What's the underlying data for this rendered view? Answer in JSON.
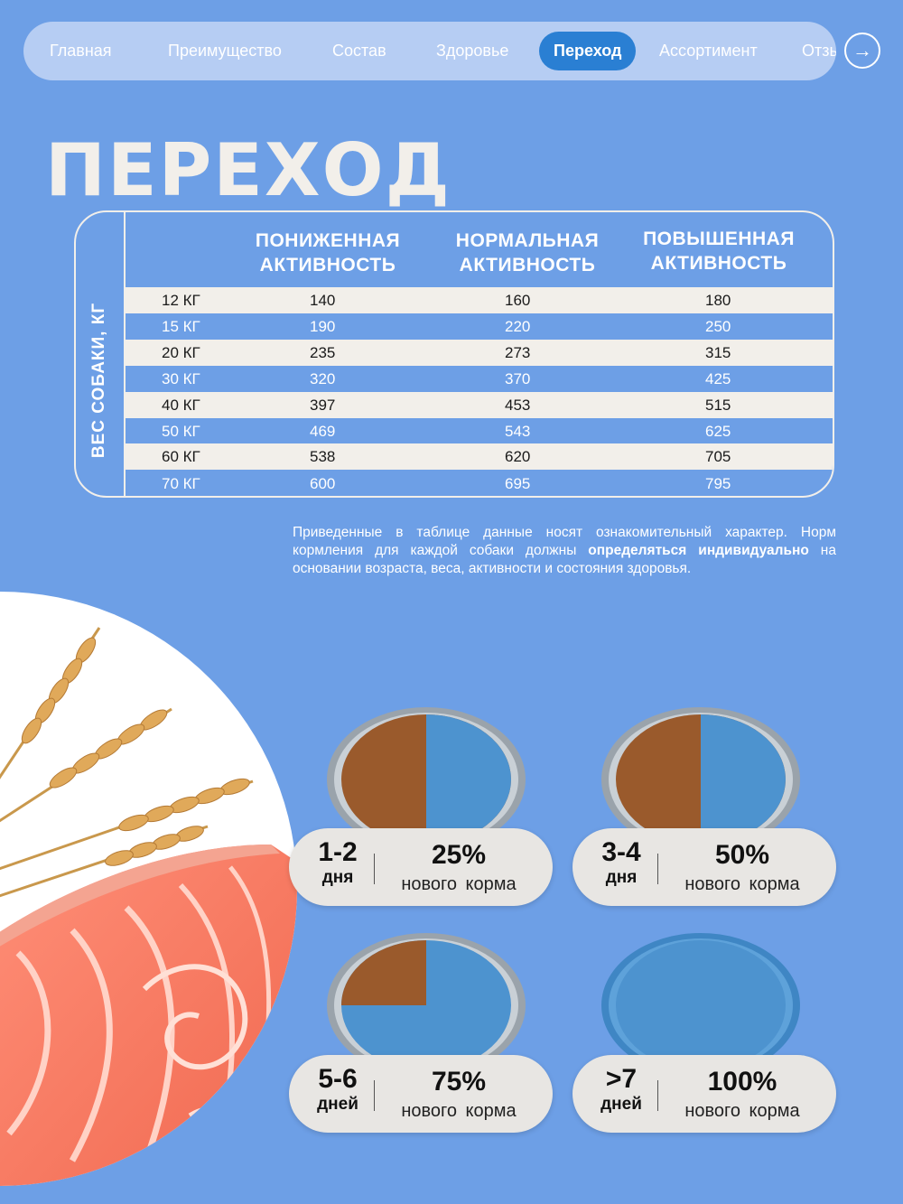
{
  "nav": {
    "items": [
      "Главная",
      "Преимущество",
      "Состав",
      "Здоровье",
      "Переход",
      "Ассортимент",
      "Отзывы"
    ],
    "active": "Переход",
    "next_arrow": "→"
  },
  "title": "ПЕРЕХОД",
  "table": {
    "row_header": "ВЕС СОБАКИ, КГ",
    "columns": [
      [
        "ПОНИЖЕННАЯ",
        "АКТИВНОСТЬ"
      ],
      [
        "НОРМАЛЬНАЯ",
        "АКТИВНОСТЬ"
      ],
      [
        "ПОВЫШЕННАЯ",
        "АКТИВНОСТЬ"
      ]
    ],
    "rows": [
      {
        "weight": "12 КГ",
        "low": "140",
        "normal": "160",
        "high": "180"
      },
      {
        "weight": "15 КГ",
        "low": "190",
        "normal": "220",
        "high": "250"
      },
      {
        "weight": "20 КГ",
        "low": "235",
        "normal": "273",
        "high": "315"
      },
      {
        "weight": "30 КГ",
        "low": "320",
        "normal": "370",
        "high": "425"
      },
      {
        "weight": "40 КГ",
        "low": "397",
        "normal": "453",
        "high": "515"
      },
      {
        "weight": "50 КГ",
        "low": "469",
        "normal": "543",
        "high": "625"
      },
      {
        "weight": "60 КГ",
        "low": "538",
        "normal": "620",
        "high": "705"
      },
      {
        "weight": "70 КГ",
        "low": "600",
        "normal": "695",
        "high": "795"
      }
    ]
  },
  "note": {
    "part1": "Приведенные в таблице данные носят ознакомительный характер. Норм кормления для каждой собаки должны ",
    "bold": "определяться индивидуально",
    "part2": " на основании возраста, веса, активности и состояния здоровья."
  },
  "transition": [
    {
      "days": "1-2",
      "unit": "дня",
      "percent": "25%",
      "label": "нового корма",
      "new_fraction": 0.25
    },
    {
      "days": "3-4",
      "unit": "дня",
      "percent": "50%",
      "label": "нового корма",
      "new_fraction": 0.5
    },
    {
      "days": "5-6",
      "unit": "дней",
      "percent": "75%",
      "label": "нового корма",
      "new_fraction": 0.75
    },
    {
      "days": ">7",
      "unit": "дней",
      "percent": "100%",
      "label": "нового корма",
      "new_fraction": 1.0
    }
  ],
  "colors": {
    "background": "#6d9fe6",
    "nav_pill": "#b6cdf3",
    "nav_active": "#2a7fd3",
    "cream": "#f2efea",
    "old_food": "#9a5a2c",
    "new_food": "#4d93cf"
  }
}
